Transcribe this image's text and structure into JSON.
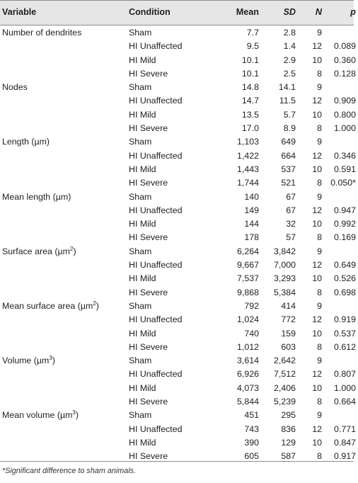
{
  "columns": {
    "variable": "Variable",
    "condition": "Condition",
    "mean": "Mean",
    "sd": "SD",
    "n": "N",
    "p": "p"
  },
  "rows": [
    {
      "variable": "Number of dendrites",
      "condition": "Sham",
      "mean": "7.7",
      "sd": "2.8",
      "n": "9",
      "p": ""
    },
    {
      "variable": "",
      "condition": "HI Unaffected",
      "mean": "9.5",
      "sd": "1.4",
      "n": "12",
      "p": "0.089"
    },
    {
      "variable": "",
      "condition": "HI Mild",
      "mean": "10.1",
      "sd": "2.9",
      "n": "10",
      "p": "0.360"
    },
    {
      "variable": "",
      "condition": "HI Severe",
      "mean": "10.1",
      "sd": "2.5",
      "n": "8",
      "p": "0.128"
    },
    {
      "variable": "Nodes",
      "condition": "Sham",
      "mean": "14.8",
      "sd": "14.1",
      "n": "9",
      "p": ""
    },
    {
      "variable": "",
      "condition": "HI Unaffected",
      "mean": "14.7",
      "sd": "11.5",
      "n": "12",
      "p": "0.909"
    },
    {
      "variable": "",
      "condition": "HI Mild",
      "mean": "13.5",
      "sd": "5.7",
      "n": "10",
      "p": "0.800"
    },
    {
      "variable": "",
      "condition": "HI Severe",
      "mean": "17.0",
      "sd": "8.9",
      "n": "8",
      "p": "1.000"
    },
    {
      "variable": "Length (µm)",
      "condition": "Sham",
      "mean": "1,103",
      "sd": "649",
      "n": "9",
      "p": ""
    },
    {
      "variable": "",
      "condition": "HI Unaffected",
      "mean": "1,422",
      "sd": "664",
      "n": "12",
      "p": "0.346"
    },
    {
      "variable": "",
      "condition": "HI Mild",
      "mean": "1,443",
      "sd": "537",
      "n": "10",
      "p": "0.591"
    },
    {
      "variable": "",
      "condition": "HI Severe",
      "mean": "1,744",
      "sd": "521",
      "n": "8",
      "p": "0.050*"
    },
    {
      "variable": "Mean length (µm)",
      "condition": "Sham",
      "mean": "140",
      "sd": "67",
      "n": "9",
      "p": ""
    },
    {
      "variable": "",
      "condition": "HI Unaffected",
      "mean": "149",
      "sd": "67",
      "n": "12",
      "p": "0.947"
    },
    {
      "variable": "",
      "condition": "HI Mild",
      "mean": "144",
      "sd": "32",
      "n": "10",
      "p": "0.992"
    },
    {
      "variable": "",
      "condition": "HI Severe",
      "mean": "178",
      "sd": "57",
      "n": "8",
      "p": "0.169"
    },
    {
      "variable": "Surface area (µm",
      "variable_sup": "2",
      "variable_tail": ")",
      "condition": "Sham",
      "mean": "6,264",
      "sd": "3,842",
      "n": "9",
      "p": ""
    },
    {
      "variable": "",
      "condition": "HI Unaffected",
      "mean": "9,667",
      "sd": "7,000",
      "n": "12",
      "p": "0.649"
    },
    {
      "variable": "",
      "condition": "HI Mild",
      "mean": "7,537",
      "sd": "3,293",
      "n": "10",
      "p": "0.526"
    },
    {
      "variable": "",
      "condition": "HI Severe",
      "mean": "9,868",
      "sd": "5,384",
      "n": "8",
      "p": "0.698"
    },
    {
      "variable": "Mean surface area (µm",
      "variable_sup": "2",
      "variable_tail": ")",
      "condition": "Sham",
      "mean": "792",
      "sd": "414",
      "n": "9",
      "p": ""
    },
    {
      "variable": "",
      "condition": "HI Unaffected",
      "mean": "1,024",
      "sd": "772",
      "n": "12",
      "p": "0.919"
    },
    {
      "variable": "",
      "condition": "HI Mild",
      "mean": "740",
      "sd": "159",
      "n": "10",
      "p": "0.537"
    },
    {
      "variable": "",
      "condition": "HI Severe",
      "mean": "1,012",
      "sd": "603",
      "n": "8",
      "p": "0.612"
    },
    {
      "variable": "Volume (µm",
      "variable_sup": "3",
      "variable_tail": ")",
      "condition": "Sham",
      "mean": "3,614",
      "sd": "2,642",
      "n": "9",
      "p": ""
    },
    {
      "variable": "",
      "condition": "HI Unaffected",
      "mean": "6,926",
      "sd": "7,512",
      "n": "12",
      "p": "0.807"
    },
    {
      "variable": "",
      "condition": "HI Mild",
      "mean": "4,073",
      "sd": "2,406",
      "n": "10",
      "p": "1.000"
    },
    {
      "variable": "",
      "condition": "HI Severe",
      "mean": "5,844",
      "sd": "5,239",
      "n": "8",
      "p": "0.664"
    },
    {
      "variable": "Mean volume (µm",
      "variable_sup": "3",
      "variable_tail": ")",
      "condition": "Sham",
      "mean": "451",
      "sd": "295",
      "n": "9",
      "p": ""
    },
    {
      "variable": "",
      "condition": "HI Unaffected",
      "mean": "743",
      "sd": "836",
      "n": "12",
      "p": "0.771"
    },
    {
      "variable": "",
      "condition": "HI Mild",
      "mean": "390",
      "sd": "129",
      "n": "10",
      "p": "0.847"
    },
    {
      "variable": "",
      "condition": "HI Severe",
      "mean": "605",
      "sd": "587",
      "n": "8",
      "p": "0.917"
    }
  ],
  "footnote": "*Significant difference to sham animals.",
  "colors": {
    "header_bg": "#e6e6e6",
    "rule": "#8c8c8c",
    "text": "#222222"
  }
}
